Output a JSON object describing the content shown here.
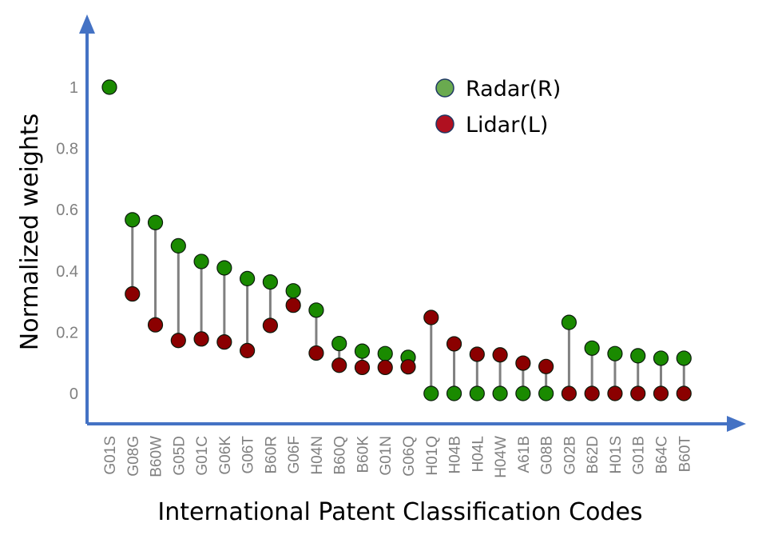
{
  "chart_data": {
    "type": "scatter",
    "subtype": "dumbbell",
    "xlabel": "International Patent Classification Codes",
    "ylabel": "Normalized weights",
    "ylim": [
      -0.1,
      1.2
    ],
    "yticks": [
      "0",
      "0.2",
      "0.4",
      "0.6",
      "0.8",
      "1"
    ],
    "ytick_values": [
      0,
      0.2,
      0.4,
      0.6,
      0.8,
      1
    ],
    "grid": false,
    "legend_position": "top-right",
    "categories": [
      "G01S",
      "G08G",
      "B60W",
      "G05D",
      "G01C",
      "G06K",
      "G06T",
      "B60R",
      "G06F",
      "H04N",
      "B60Q",
      "B60K",
      "G01N",
      "G06Q",
      "H01Q",
      "H04B",
      "H04L",
      "H04W",
      "A61B",
      "G08B",
      "G02B",
      "B62D",
      "H01S",
      "G01B",
      "B64C",
      "B60T"
    ],
    "series": [
      {
        "name": "Radar(R)",
        "color": "#1a8a00",
        "values": [
          1.0,
          0.567,
          0.558,
          0.482,
          0.431,
          0.41,
          0.375,
          0.364,
          0.335,
          0.272,
          0.163,
          0.138,
          0.13,
          0.118,
          0.0,
          0.0,
          0.0,
          0.0,
          0.0,
          0.0,
          0.232,
          0.148,
          0.13,
          0.123,
          0.115,
          0.115
        ]
      },
      {
        "name": "Lidar(L)",
        "color": "#8b0000",
        "values": [
          null,
          0.325,
          0.224,
          0.173,
          0.178,
          0.168,
          0.14,
          0.222,
          0.288,
          0.132,
          0.092,
          0.085,
          0.085,
          0.087,
          0.248,
          0.162,
          0.128,
          0.126,
          0.099,
          0.088,
          0.0,
          0.0,
          0.0,
          0.0,
          0.0,
          0.0
        ]
      }
    ],
    "legend_colors": {
      "Radar(R)": "#6aaa4f",
      "Lidar(L)": "#b01020"
    },
    "axis_color": "#4472c4",
    "connector_color": "#808080"
  }
}
